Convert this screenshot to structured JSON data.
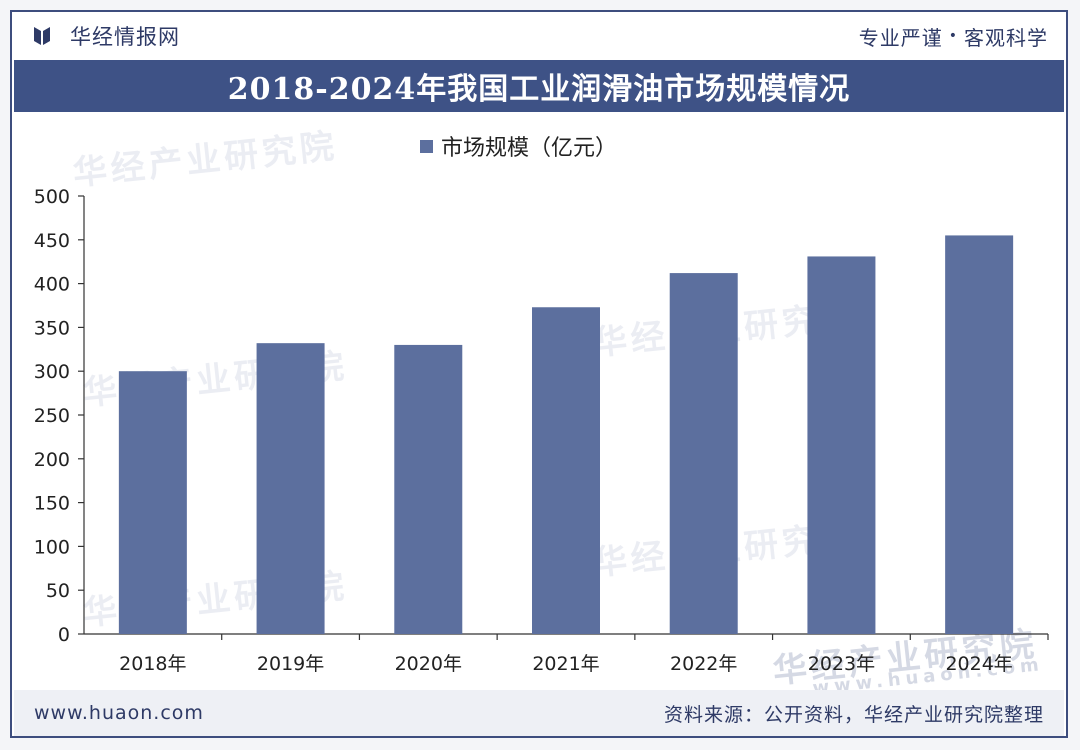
{
  "header": {
    "brand_name": "华经情报网",
    "slogan_left": "专业严谨",
    "slogan_dot": "•",
    "slogan_right": "客观科学"
  },
  "watermark": {
    "text": "华经产业研究院",
    "url": "www.huaon.com"
  },
  "footer": {
    "url": "www.huaon.com",
    "source": "资料来源：公开资料，华经产业研究院整理"
  },
  "colors": {
    "bar": "#5c6f9e",
    "title_bar": "#3e5286",
    "brand": "#2e3a66"
  },
  "chart_data": {
    "type": "bar",
    "title": "2018-2024年我国工业润滑油市场规模情况",
    "legend": "市场规模（亿元）",
    "categories": [
      "2018年",
      "2019年",
      "2020年",
      "2021年",
      "2022年",
      "2023年",
      "2024年"
    ],
    "series": [
      {
        "name": "市场规模（亿元）",
        "values": [
          300,
          332,
          330,
          373,
          412,
          431,
          455
        ]
      }
    ],
    "ylim": [
      0,
      500
    ],
    "yticks": [
      0,
      50,
      100,
      150,
      200,
      250,
      300,
      350,
      400,
      450,
      500
    ],
    "xlabel": "",
    "ylabel": "",
    "grid": false
  }
}
